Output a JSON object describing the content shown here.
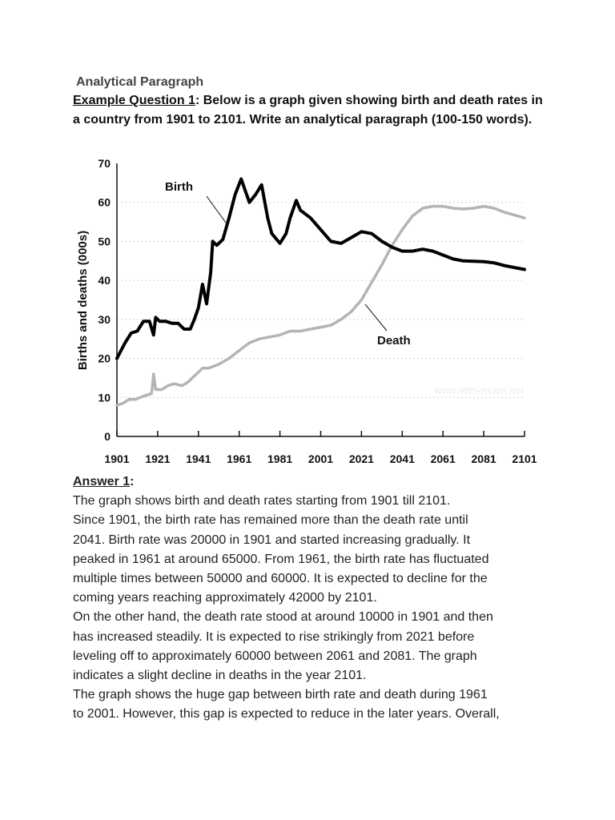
{
  "heading": "Analytical Paragraph",
  "question": {
    "label": "Example Question 1",
    "text": ": Below is a graph given showing birth and death rates in a country from 1901 to 2101. Write an analytical paragraph (100-150 words)."
  },
  "chart_data": {
    "type": "line",
    "title": "",
    "xlabel": "",
    "ylabel": "Births and deaths (000s)",
    "xlim": [
      1901,
      2101
    ],
    "ylim": [
      0,
      70
    ],
    "x_ticks": [
      "1901",
      "1921",
      "1941",
      "1961",
      "1981",
      "2001",
      "2021",
      "2041",
      "2061",
      "2081",
      "2101"
    ],
    "y_ticks": [
      "0",
      "10",
      "20",
      "30",
      "40",
      "50",
      "60",
      "70"
    ],
    "grid": "horizontal dotted",
    "watermark": "www.ielts-exam.net",
    "series": [
      {
        "name": "Birth",
        "color": "#000000",
        "x": [
          1901,
          1905,
          1908,
          1911,
          1914,
          1917,
          1919,
          1920,
          1922,
          1925,
          1928,
          1931,
          1934,
          1937,
          1939,
          1941,
          1943,
          1945,
          1947,
          1948,
          1950,
          1953,
          1956,
          1959,
          1962,
          1964,
          1966,
          1969,
          1972,
          1975,
          1977,
          1981,
          1984,
          1986,
          1989,
          1991,
          1996,
          2001,
          2006,
          2011,
          2016,
          2021,
          2026,
          2031,
          2036,
          2041,
          2046,
          2051,
          2056,
          2061,
          2066,
          2071,
          2081,
          2086,
          2091,
          2101
        ],
        "y": [
          20,
          24,
          26.5,
          27,
          29.5,
          29.5,
          26,
          30.5,
          29.5,
          29.5,
          29,
          29,
          27.5,
          27.5,
          30,
          33,
          39,
          34,
          42,
          50,
          49,
          50.5,
          56,
          62,
          66,
          63,
          60,
          62,
          64.5,
          56,
          52,
          49.5,
          52,
          56,
          60.5,
          58,
          56,
          53,
          50,
          49.5,
          51,
          52.5,
          52,
          50,
          48.5,
          47.5,
          47.5,
          48,
          47.5,
          46.5,
          45.5,
          45,
          44.8,
          44.5,
          43.8,
          42.8
        ]
      },
      {
        "name": "Death",
        "color": "#b4b4b4",
        "x": [
          1901,
          1904,
          1907,
          1910,
          1915,
          1918,
          1919,
          1920,
          1923,
          1926,
          1929,
          1933,
          1936,
          1940,
          1943,
          1946,
          1951,
          1956,
          1961,
          1966,
          1971,
          1976,
          1981,
          1986,
          1991,
          1996,
          2001,
          2006,
          2011,
          2016,
          2021,
          2026,
          2031,
          2036,
          2041,
          2046,
          2051,
          2056,
          2061,
          2066,
          2071,
          2076,
          2081,
          2086,
          2091,
          2101
        ],
        "y": [
          8,
          8.5,
          9.5,
          9.5,
          10.5,
          11,
          16,
          12,
          12,
          13,
          13.5,
          13,
          14,
          16,
          17.5,
          17.5,
          18.5,
          20,
          22,
          24,
          25,
          25.5,
          26,
          27,
          27,
          27.5,
          28,
          28.5,
          30,
          32,
          35,
          39.5,
          44,
          49,
          53,
          56.5,
          58.5,
          59,
          59,
          58.5,
          58.3,
          58.5,
          59,
          58.5,
          57.5,
          56
        ]
      }
    ]
  },
  "answer": {
    "title": "Answer 1",
    "colon": ":",
    "lines": [
      "The graph shows birth and death rates starting from 1901 till 2101.",
      "Since 1901, the birth rate has remained more than the death rate until",
      "2041. Birth rate was 20000 in 1901 and started increasing gradually. It",
      "peaked in 1961 at around 65000. From 1961, the birth rate has fluctuated",
      "multiple times between 50000 and 60000. It is expected to decline for the",
      "coming years reaching approximately 42000 by 2101.",
      "On the other hand, the death rate stood at around 10000 in 1901 and then",
      "has increased steadily. It is expected to rise strikingly from 2021 before",
      "leveling off to approximately 60000 between 2061 and 2081. The graph",
      "indicates a slight decline in deaths in the year 2101.",
      "The graph shows the huge gap between birth rate and death during 1961",
      "to 2001. However, this gap is expected to reduce in the later years. Overall,"
    ]
  }
}
